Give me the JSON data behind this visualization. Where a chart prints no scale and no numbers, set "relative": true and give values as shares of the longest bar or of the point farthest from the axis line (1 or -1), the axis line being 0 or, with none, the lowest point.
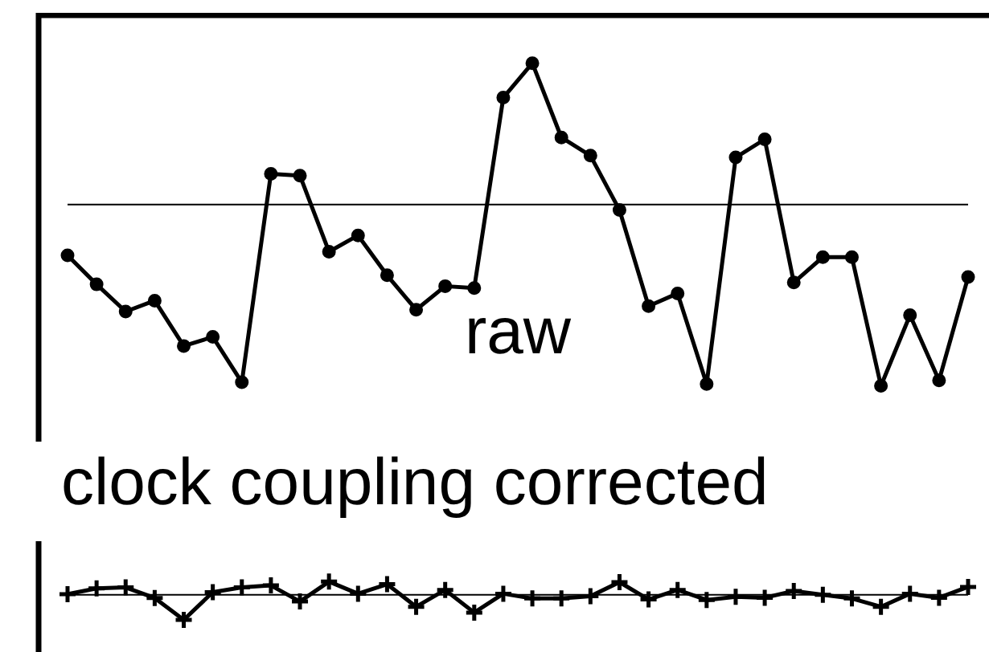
{
  "chart_data": [
    {
      "type": "line",
      "relative": true,
      "marker": "circle",
      "annotations": [
        "raw"
      ],
      "categories": [
        null,
        null,
        null,
        null,
        null,
        null,
        null,
        null,
        null,
        null,
        null,
        null,
        null,
        null,
        null,
        null,
        null,
        null,
        null,
        null,
        null,
        null,
        null,
        null,
        null,
        null,
        null,
        null,
        null,
        null,
        null,
        null
      ],
      "series": [
        {
          "color": "#000000",
          "values": [
            -0.28,
            -0.44,
            -0.59,
            -0.53,
            -0.78,
            -0.73,
            -0.98,
            0.17,
            0.16,
            -0.26,
            -0.17,
            -0.39,
            -0.58,
            -0.45,
            -0.46,
            0.59,
            0.78,
            0.37,
            0.27,
            -0.03,
            -0.56,
            -0.49,
            -0.99,
            0.26,
            0.36,
            -0.43,
            -0.29,
            -0.29,
            -1,
            -0.61,
            -0.97,
            -0.4
          ]
        }
      ]
    },
    {
      "type": "line",
      "relative": true,
      "marker": "cross",
      "title": "clock coupling corrected",
      "categories": [
        null,
        null,
        null,
        null,
        null,
        null,
        null,
        null,
        null,
        null,
        null,
        null,
        null,
        null,
        null,
        null,
        null,
        null,
        null,
        null,
        null,
        null,
        null,
        null,
        null,
        null,
        null,
        null,
        null,
        null,
        null,
        null
      ],
      "series": [
        {
          "color": "#000000",
          "values": [
            0.02,
            0.25,
            0.29,
            -0.13,
            -1,
            0.1,
            0.29,
            0.37,
            -0.27,
            0.52,
            0.04,
            0.42,
            -0.48,
            0.19,
            -0.71,
            0.04,
            -0.15,
            -0.15,
            -0.06,
            0.5,
            -0.19,
            0.19,
            -0.21,
            -0.08,
            -0.12,
            0.15,
            0,
            -0.15,
            -0.48,
            0.04,
            -0.12,
            0.31
          ]
        }
      ]
    }
  ]
}
